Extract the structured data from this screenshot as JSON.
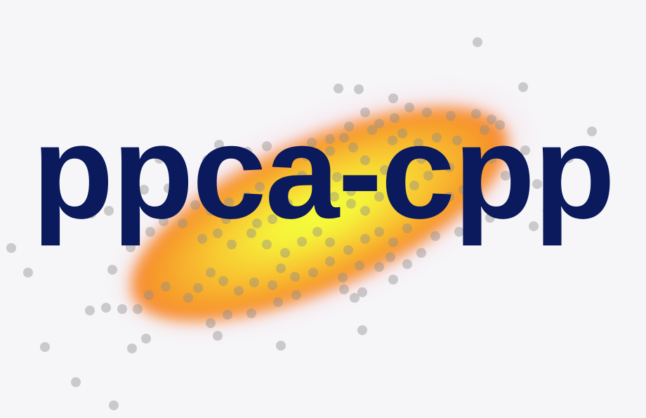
{
  "logo": {
    "wordmark": "ppca-cpp",
    "colors": {
      "background": "#f6f6f8",
      "text": "#0b1a5c",
      "glow_center": "#f4ff3a",
      "glow_edge": "#f7803c",
      "point": "#8c8c8c"
    }
  }
}
